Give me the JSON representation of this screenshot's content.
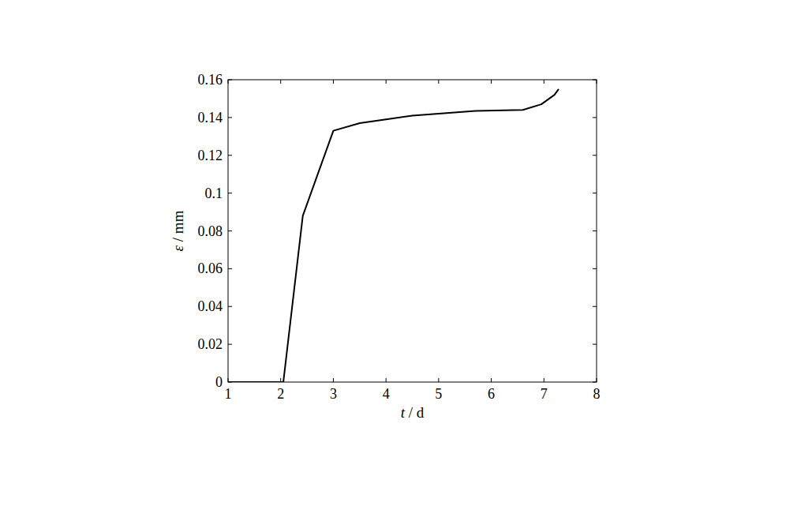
{
  "chart_data": {
    "type": "line",
    "xlabel": "t / d",
    "ylabel": "ε / mm",
    "x": [
      1,
      2.05,
      2.42,
      3.0,
      3.5,
      4.0,
      4.5,
      5.0,
      5.7,
      6.6,
      6.95,
      7.2,
      7.28
    ],
    "values": [
      0,
      0,
      0.088,
      0.133,
      0.137,
      0.139,
      0.141,
      0.142,
      0.1435,
      0.144,
      0.147,
      0.152,
      0.155
    ],
    "color": "#000000",
    "xlim": [
      1,
      8
    ],
    "xticks": [
      1,
      2,
      3,
      4,
      5,
      6,
      7,
      8
    ],
    "ylim": [
      0,
      0.16
    ],
    "yticks": [
      0,
      0.02,
      0.04,
      0.06,
      0.08,
      0.1,
      0.12,
      0.14,
      0.16
    ],
    "grid": false
  }
}
